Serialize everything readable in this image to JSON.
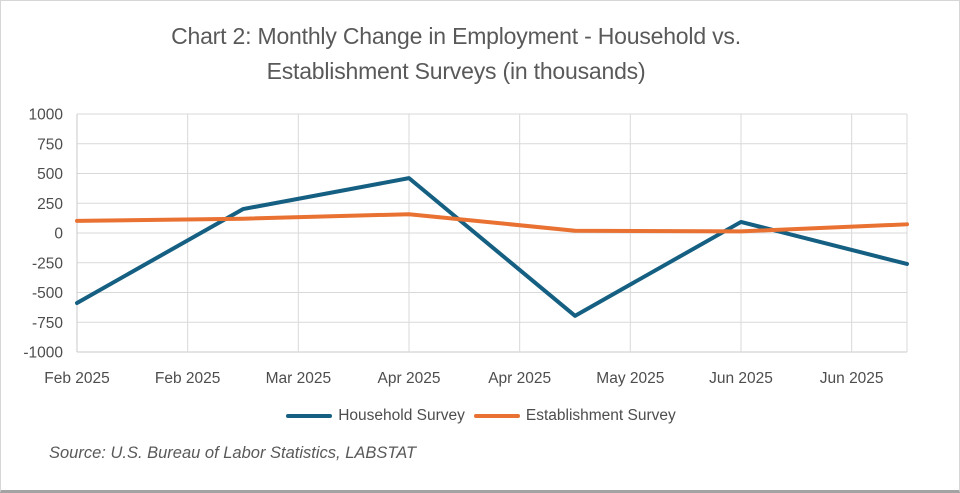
{
  "window": {
    "background": "#ffffff",
    "border_color": "#d6d6d6",
    "border_bottom_color": "#a3a3a3"
  },
  "chart_data": {
    "type": "line",
    "title": "Chart 2: Monthly Change in Employment - Household vs. Establishment Surveys (in thousands)",
    "title_lines": [
      "Chart 2: Monthly Change in Employment - Household vs.",
      "Establishment Surveys (in thousands)"
    ],
    "x_tick_labels": [
      "Feb 2025",
      "Feb 2025",
      "Mar 2025",
      "Apr 2025",
      "Apr 2025",
      "May 2025",
      "Jun 2025",
      "Jun 2025"
    ],
    "y_ticks": [
      1000,
      750,
      500,
      250,
      0,
      -250,
      -500,
      -750,
      -1000
    ],
    "ylim": [
      -1000,
      1000
    ],
    "grid": true,
    "legend_position": "bottom",
    "series": [
      {
        "name": "Household Survey",
        "color": "#156082",
        "values": [
          -588,
          201,
          461,
          -696,
          93,
          -260
        ]
      },
      {
        "name": "Establishment Survey",
        "color": "#E97132",
        "values": [
          102,
          120,
          158,
          19,
          14,
          73
        ]
      }
    ]
  },
  "colors": {
    "grid_line": "#d9d9d9",
    "axis_line": "#c9c9c9",
    "axis_text": "#4d4d4d",
    "title_text": "#595959"
  },
  "source_note": "Source: U.S. Bureau of Labor Statistics, LABSTAT"
}
